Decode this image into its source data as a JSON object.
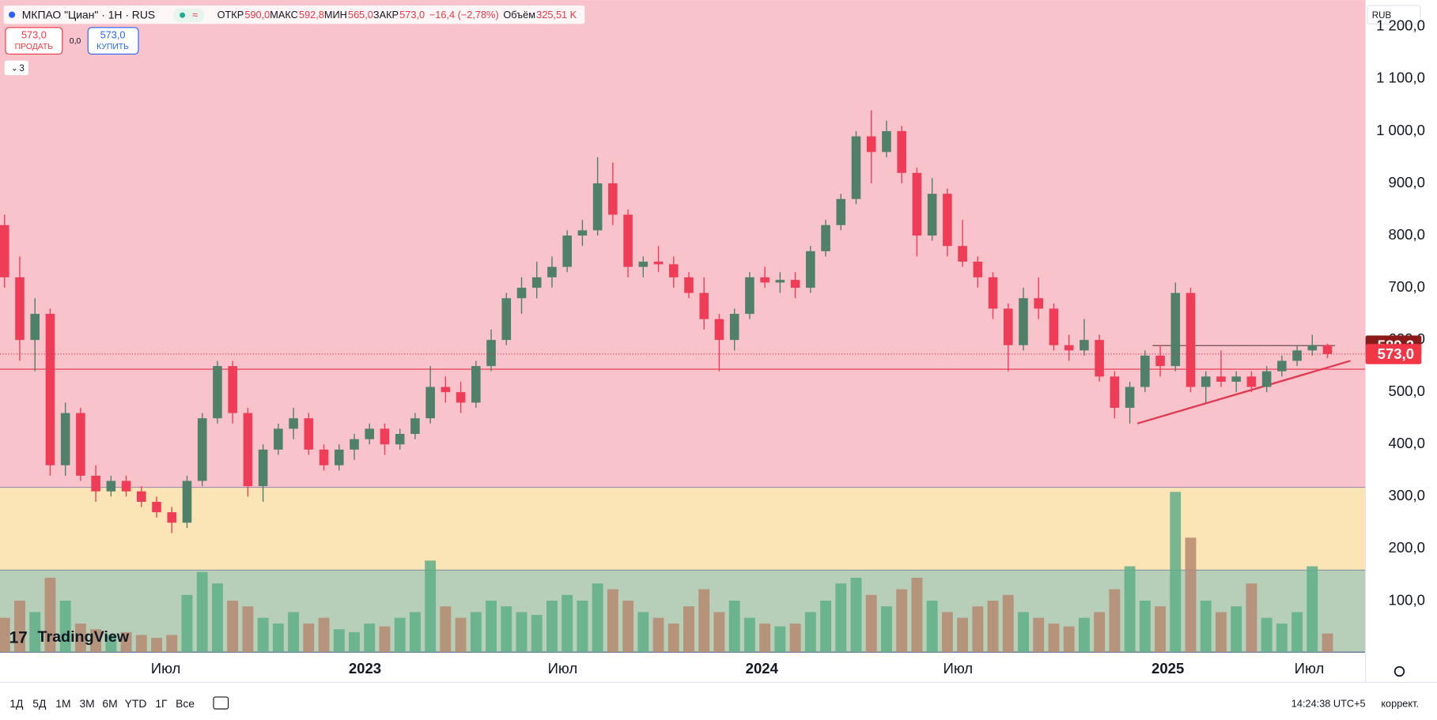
{
  "header": {
    "symbol": "МКПАО \"Циан\" · 1H · RUS",
    "ohlc": [
      {
        "label": "ОТКР",
        "value": "590,0"
      },
      {
        "label": "МАКС",
        "value": "592,8"
      },
      {
        "label": "МИН",
        "value": "565,0"
      },
      {
        "label": "ЗАКР",
        "value": "573,0"
      }
    ],
    "change": "−16,4 (−2,78%)",
    "volume_label": "Объём",
    "volume": "325,51 K",
    "sell": {
      "price": "573,0",
      "label": "ПРОДАТЬ"
    },
    "spread": "0,0",
    "buy": {
      "price": "573,0",
      "label": "КУПИТЬ"
    },
    "indicators": "3",
    "currency": "RUB",
    "logo": "TradingView"
  },
  "chart_data": {
    "type": "candlestick",
    "candles": [
      [
        820,
        840,
        700,
        720
      ],
      [
        720,
        760,
        560,
        600
      ],
      [
        600,
        680,
        540,
        650
      ],
      [
        650,
        660,
        340,
        360
      ],
      [
        360,
        480,
        340,
        460
      ],
      [
        460,
        470,
        330,
        340
      ],
      [
        340,
        360,
        290,
        310
      ],
      [
        310,
        340,
        300,
        330
      ],
      [
        330,
        340,
        300,
        310
      ],
      [
        310,
        320,
        280,
        290
      ],
      [
        290,
        300,
        260,
        270
      ],
      [
        270,
        280,
        230,
        250
      ],
      [
        250,
        340,
        240,
        330
      ],
      [
        330,
        460,
        320,
        450
      ],
      [
        450,
        560,
        440,
        550
      ],
      [
        550,
        560,
        440,
        460
      ],
      [
        460,
        470,
        300,
        320
      ],
      [
        320,
        400,
        290,
        390
      ],
      [
        390,
        440,
        380,
        430
      ],
      [
        430,
        470,
        410,
        450
      ],
      [
        450,
        460,
        380,
        390
      ],
      [
        390,
        400,
        350,
        360
      ],
      [
        360,
        400,
        350,
        390
      ],
      [
        390,
        420,
        370,
        410
      ],
      [
        410,
        440,
        400,
        430
      ],
      [
        430,
        440,
        380,
        400
      ],
      [
        400,
        430,
        390,
        420
      ],
      [
        420,
        460,
        410,
        450
      ],
      [
        450,
        550,
        440,
        510
      ],
      [
        510,
        530,
        480,
        500
      ],
      [
        500,
        520,
        460,
        480
      ],
      [
        480,
        560,
        470,
        550
      ],
      [
        550,
        620,
        540,
        600
      ],
      [
        600,
        690,
        590,
        680
      ],
      [
        680,
        720,
        650,
        700
      ],
      [
        700,
        750,
        680,
        720
      ],
      [
        720,
        760,
        700,
        740
      ],
      [
        740,
        810,
        730,
        800
      ],
      [
        800,
        830,
        780,
        810
      ],
      [
        810,
        950,
        800,
        900
      ],
      [
        900,
        940,
        820,
        840
      ],
      [
        840,
        850,
        720,
        740
      ],
      [
        740,
        760,
        720,
        750
      ],
      [
        750,
        780,
        730,
        745
      ],
      [
        745,
        760,
        700,
        720
      ],
      [
        720,
        730,
        680,
        690
      ],
      [
        690,
        720,
        620,
        640
      ],
      [
        640,
        650,
        540,
        600
      ],
      [
        600,
        660,
        580,
        650
      ],
      [
        650,
        730,
        640,
        720
      ],
      [
        720,
        740,
        700,
        710
      ],
      [
        710,
        730,
        690,
        715
      ],
      [
        715,
        730,
        680,
        700
      ],
      [
        700,
        780,
        690,
        770
      ],
      [
        770,
        830,
        760,
        820
      ],
      [
        820,
        880,
        810,
        870
      ],
      [
        870,
        1000,
        860,
        990
      ],
      [
        990,
        1040,
        900,
        960
      ],
      [
        960,
        1020,
        950,
        1000
      ],
      [
        1000,
        1010,
        900,
        920
      ],
      [
        920,
        930,
        760,
        800
      ],
      [
        800,
        910,
        790,
        880
      ],
      [
        880,
        890,
        760,
        780
      ],
      [
        780,
        830,
        740,
        750
      ],
      [
        750,
        760,
        700,
        720
      ],
      [
        720,
        730,
        640,
        660
      ],
      [
        660,
        670,
        540,
        590
      ],
      [
        590,
        700,
        580,
        680
      ],
      [
        680,
        720,
        640,
        660
      ],
      [
        660,
        670,
        580,
        590
      ],
      [
        590,
        610,
        560,
        580
      ],
      [
        580,
        640,
        570,
        600
      ],
      [
        600,
        610,
        520,
        530
      ],
      [
        530,
        540,
        450,
        470
      ],
      [
        470,
        520,
        440,
        510
      ],
      [
        510,
        580,
        500,
        570
      ],
      [
        570,
        590,
        530,
        550
      ],
      [
        550,
        710,
        540,
        690
      ],
      [
        690,
        700,
        500,
        510
      ],
      [
        510,
        540,
        480,
        530
      ],
      [
        530,
        580,
        510,
        520
      ],
      [
        520,
        540,
        500,
        530
      ],
      [
        530,
        540,
        500,
        510
      ],
      [
        510,
        550,
        500,
        540
      ],
      [
        540,
        570,
        530,
        560
      ],
      [
        560,
        590,
        550,
        580
      ],
      [
        580,
        610,
        570,
        590
      ],
      [
        590,
        592.8,
        565,
        573
      ]
    ],
    "volumes": [
      600,
      900,
      700,
      1300,
      900,
      500,
      400,
      300,
      350,
      300,
      250,
      300,
      1000,
      1400,
      1200,
      900,
      800,
      600,
      500,
      700,
      500,
      600,
      400,
      350,
      500,
      450,
      600,
      700,
      1600,
      800,
      600,
      700,
      900,
      800,
      700,
      650,
      900,
      1000,
      900,
      1200,
      1100,
      900,
      700,
      600,
      500,
      800,
      1100,
      700,
      900,
      600,
      500,
      450,
      500,
      700,
      900,
      1200,
      1300,
      1000,
      800,
      1100,
      1300,
      900,
      700,
      600,
      800,
      900,
      1000,
      700,
      600,
      500,
      450,
      600,
      700,
      1100,
      1500,
      900,
      800,
      2800,
      2000,
      900,
      700,
      800,
      1200,
      600,
      500,
      700,
      1500,
      325.51
    ],
    "up_color": "#4f8069",
    "down_color": "#ef3d57",
    "volume_up_color": "#5fae88",
    "volume_down_color": "#b58a70",
    "xlim": [
      -0.3,
      89.5
    ],
    "xticks": [
      {
        "value": 10.6,
        "label": "Июл"
      },
      {
        "value": 23.7,
        "label": "2023"
      },
      {
        "value": 36.7,
        "label": "Июл"
      },
      {
        "value": 49.8,
        "label": "2024"
      },
      {
        "value": 62.7,
        "label": "Июл"
      },
      {
        "value": 76.5,
        "label": "2025"
      },
      {
        "value": 85.8,
        "label": "Июл"
      }
    ],
    "ylim": [
      2,
      1251
    ],
    "yticks": [
      {
        "value": 100,
        "label": "100,0"
      },
      {
        "value": 200,
        "label": "200,0"
      },
      {
        "value": 300,
        "label": "300,0"
      },
      {
        "value": 400,
        "label": "400,0"
      },
      {
        "value": 500,
        "label": "500,0"
      },
      {
        "value": 600,
        "label": "600,0"
      },
      {
        "value": 700,
        "label": "700,0"
      },
      {
        "value": 800,
        "label": "800,0"
      },
      {
        "value": 900,
        "label": "900,0"
      },
      {
        "value": 1000,
        "label": "1 000,0"
      },
      {
        "value": 1100,
        "label": "1 100,0"
      },
      {
        "value": 1200,
        "label": "1 200,0"
      }
    ],
    "zones": [
      {
        "from": 317,
        "to": 1251,
        "color": "#f8c3ca"
      },
      {
        "from": 159,
        "to": 317,
        "color": "#fbe5b7"
      },
      {
        "from": 2,
        "to": 159,
        "color": "#b7cfb8"
      }
    ],
    "levels": [
      {
        "value": 544,
        "color": "#e8435a"
      }
    ],
    "trendline": {
      "x": [
        74.5,
        88.5
      ],
      "y": [
        440,
        560
      ],
      "color": "#e03a52"
    },
    "resistance": {
      "x": [
        75.5,
        87.5
      ],
      "y": [
        589.2,
        589.2
      ],
      "color": "#7a5a5a"
    },
    "price_labels": [
      {
        "value": 589.2,
        "label": "589,2",
        "color": "#8b1a1a"
      },
      {
        "value": 573,
        "label": "573,0",
        "color": "#f23645"
      }
    ]
  },
  "toolbar": {
    "ranges": [
      "1Д",
      "5Д",
      "1М",
      "3М",
      "6М",
      "YTD",
      "1Г",
      "Все"
    ],
    "clock": "14:24:38 UTC+5",
    "adjust": "коррект."
  }
}
